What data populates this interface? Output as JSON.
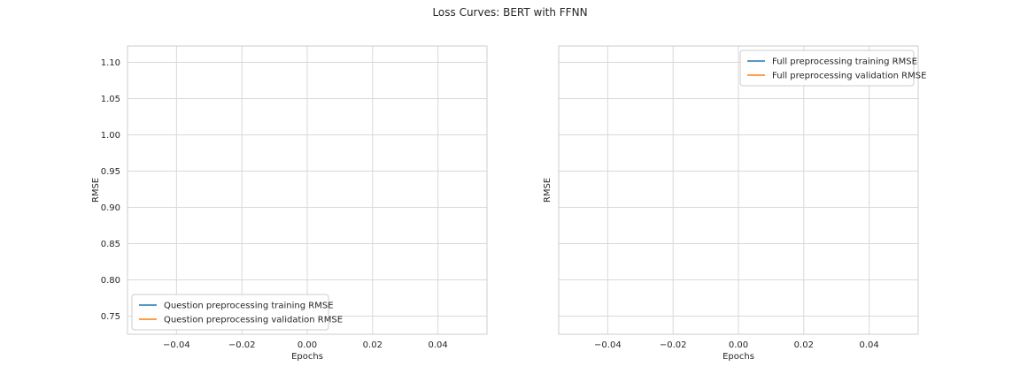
{
  "figure": {
    "title": "Loss Curves: BERT with FFNN"
  },
  "chart_data": [
    {
      "type": "line",
      "title": "",
      "xlabel": "Epochs",
      "ylabel": "RMSE",
      "xlim": [
        -0.055,
        0.055
      ],
      "ylim": [
        0.725,
        1.1225
      ],
      "xticks": [
        -0.04,
        -0.02,
        0.0,
        0.02,
        0.04
      ],
      "xtick_labels": [
        "−0.04",
        "−0.02",
        "0.00",
        "0.02",
        "0.04"
      ],
      "yticks": [
        0.75,
        0.8,
        0.85,
        0.9,
        0.95,
        1.0,
        1.05,
        1.1
      ],
      "ytick_labels": [
        "0.75",
        "0.80",
        "0.85",
        "0.90",
        "0.95",
        "1.00",
        "1.05",
        "1.10"
      ],
      "show_yticklabels": true,
      "grid": true,
      "legend_position": "lower-left",
      "series": [
        {
          "name": "Question preprocessing training RMSE",
          "color": "#1f77b4",
          "x": [],
          "y": []
        },
        {
          "name": "Question preprocessing validation RMSE",
          "color": "#ff7f0e",
          "x": [],
          "y": []
        }
      ]
    },
    {
      "type": "line",
      "title": "",
      "xlabel": "Epochs",
      "ylabel": "RMSE",
      "xlim": [
        -0.055,
        0.055
      ],
      "ylim": [
        0.725,
        1.1225
      ],
      "xticks": [
        -0.04,
        -0.02,
        0.0,
        0.02,
        0.04
      ],
      "xtick_labels": [
        "−0.04",
        "−0.02",
        "0.00",
        "0.02",
        "0.04"
      ],
      "yticks": [
        0.75,
        0.8,
        0.85,
        0.9,
        0.95,
        1.0,
        1.05,
        1.1
      ],
      "ytick_labels": [],
      "show_yticklabels": false,
      "grid": true,
      "legend_position": "upper-right",
      "series": [
        {
          "name": "Full preprocessing training RMSE",
          "color": "#1f77b4",
          "x": [],
          "y": []
        },
        {
          "name": "Full preprocessing validation RMSE",
          "color": "#ff7f0e",
          "x": [],
          "y": []
        }
      ]
    }
  ]
}
